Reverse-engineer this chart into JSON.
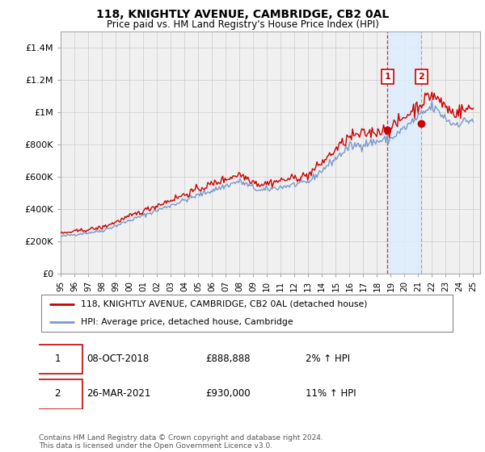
{
  "title": "118, KNIGHTLY AVENUE, CAMBRIDGE, CB2 0AL",
  "subtitle": "Price paid vs. HM Land Registry's House Price Index (HPI)",
  "ylabel_ticks": [
    "£0",
    "£200K",
    "£400K",
    "£600K",
    "£800K",
    "£1M",
    "£1.2M",
    "£1.4M"
  ],
  "ytick_values": [
    0,
    200000,
    400000,
    600000,
    800000,
    1000000,
    1200000,
    1400000
  ],
  "ylim": [
    0,
    1500000
  ],
  "xlim_start": 1995.0,
  "xlim_end": 2025.5,
  "grid_color": "#cccccc",
  "background_color": "#ffffff",
  "plot_bg_color": "#f0f0f0",
  "red_line_color": "#cc0000",
  "blue_line_color": "#7799cc",
  "shade_color": "#ddeeff",
  "marker1_x": 2018.77,
  "marker1_y": 888888,
  "marker2_x": 2021.23,
  "marker2_y": 930000,
  "vline1_color": "#cc0000",
  "vline2_color": "#8899bb",
  "legend_line1": "118, KNIGHTLY AVENUE, CAMBRIDGE, CB2 0AL (detached house)",
  "legend_line2": "HPI: Average price, detached house, Cambridge",
  "table_row1": [
    "1",
    "08-OCT-2018",
    "£888,888",
    "2% ↑ HPI"
  ],
  "table_row2": [
    "2",
    "26-MAR-2021",
    "£930,000",
    "11% ↑ HPI"
  ],
  "footnote": "Contains HM Land Registry data © Crown copyright and database right 2024.\nThis data is licensed under the Open Government Licence v3.0.",
  "shade_x_start": 2018.77,
  "shade_x_end": 2021.23,
  "xtick_labels": [
    "95",
    "96",
    "97",
    "98",
    "99",
    "00",
    "01",
    "02",
    "03",
    "04",
    "05",
    "06",
    "07",
    "08",
    "09",
    "10",
    "11",
    "12",
    "13",
    "14",
    "15",
    "16",
    "17",
    "18",
    "19",
    "20",
    "21",
    "22",
    "23",
    "24",
    "25"
  ],
  "xtick_years": [
    1995,
    1996,
    1997,
    1998,
    1999,
    2000,
    2001,
    2002,
    2003,
    2004,
    2005,
    2006,
    2007,
    2008,
    2009,
    2010,
    2011,
    2012,
    2013,
    2014,
    2015,
    2016,
    2017,
    2018,
    2019,
    2020,
    2021,
    2022,
    2023,
    2024,
    2025
  ]
}
